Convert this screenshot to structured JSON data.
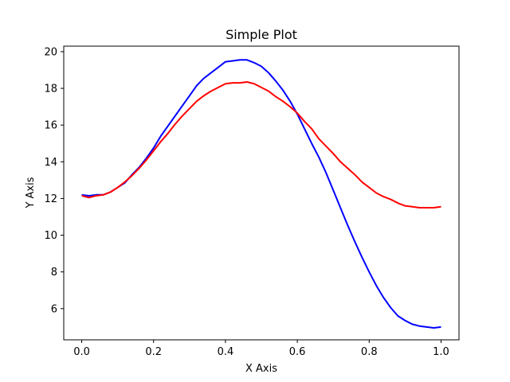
{
  "chart_data": {
    "type": "line",
    "title": "Simple Plot",
    "xlabel": "X Axis",
    "ylabel": "Y Axis",
    "xlim": [
      -0.05,
      1.05
    ],
    "ylim": [
      4.3,
      20.3
    ],
    "xticks": [
      0.0,
      0.2,
      0.4,
      0.6,
      0.8,
      1.0
    ],
    "xtick_labels": [
      "0.0",
      "0.2",
      "0.4",
      "0.6",
      "0.8",
      "1.0"
    ],
    "yticks": [
      6,
      8,
      10,
      12,
      14,
      16,
      18,
      20
    ],
    "ytick_labels": [
      "6",
      "8",
      "10",
      "12",
      "14",
      "16",
      "18",
      "20"
    ],
    "grid": false,
    "legend": "none",
    "series": [
      {
        "color": "#0000ff",
        "x": [
          0.0,
          0.02,
          0.04,
          0.06,
          0.08,
          0.1,
          0.12,
          0.14,
          0.16,
          0.18,
          0.2,
          0.22,
          0.24,
          0.26,
          0.28,
          0.3,
          0.32,
          0.34,
          0.36,
          0.38,
          0.4,
          0.42,
          0.44,
          0.46,
          0.48,
          0.5,
          0.52,
          0.54,
          0.56,
          0.58,
          0.6,
          0.62,
          0.64,
          0.66,
          0.68,
          0.7,
          0.72,
          0.74,
          0.76,
          0.78,
          0.8,
          0.82,
          0.84,
          0.86,
          0.88,
          0.9,
          0.92,
          0.94,
          0.96,
          0.98,
          1.0
        ],
        "y": [
          12.2,
          12.15,
          12.2,
          12.2,
          12.35,
          12.6,
          12.85,
          13.3,
          13.7,
          14.2,
          14.75,
          15.4,
          15.95,
          16.5,
          17.05,
          17.6,
          18.15,
          18.55,
          18.85,
          19.15,
          19.45,
          19.5,
          19.55,
          19.55,
          19.4,
          19.2,
          18.85,
          18.4,
          17.9,
          17.3,
          16.6,
          15.8,
          15.0,
          14.25,
          13.4,
          12.45,
          11.5,
          10.55,
          9.65,
          8.8,
          8.0,
          7.25,
          6.6,
          6.05,
          5.6,
          5.35,
          5.15,
          5.05,
          5.0,
          4.95,
          5.0
        ]
      },
      {
        "color": "#ff0000",
        "x": [
          0.0,
          0.02,
          0.04,
          0.06,
          0.08,
          0.1,
          0.12,
          0.14,
          0.16,
          0.18,
          0.2,
          0.22,
          0.24,
          0.26,
          0.28,
          0.3,
          0.32,
          0.34,
          0.36,
          0.38,
          0.4,
          0.42,
          0.44,
          0.46,
          0.48,
          0.5,
          0.52,
          0.54,
          0.56,
          0.58,
          0.6,
          0.62,
          0.64,
          0.66,
          0.68,
          0.7,
          0.72,
          0.74,
          0.76,
          0.78,
          0.8,
          0.82,
          0.84,
          0.86,
          0.88,
          0.9,
          0.92,
          0.94,
          0.96,
          0.98,
          1.0
        ],
        "y": [
          12.15,
          12.05,
          12.15,
          12.2,
          12.35,
          12.6,
          12.9,
          13.25,
          13.65,
          14.1,
          14.6,
          15.1,
          15.55,
          16.05,
          16.5,
          16.9,
          17.3,
          17.6,
          17.85,
          18.05,
          18.25,
          18.3,
          18.3,
          18.35,
          18.25,
          18.05,
          17.85,
          17.55,
          17.3,
          17.0,
          16.65,
          16.2,
          15.8,
          15.25,
          14.85,
          14.45,
          14.0,
          13.65,
          13.3,
          12.9,
          12.6,
          12.3,
          12.1,
          11.95,
          11.75,
          11.6,
          11.55,
          11.5,
          11.5,
          11.5,
          11.55
        ]
      }
    ]
  }
}
